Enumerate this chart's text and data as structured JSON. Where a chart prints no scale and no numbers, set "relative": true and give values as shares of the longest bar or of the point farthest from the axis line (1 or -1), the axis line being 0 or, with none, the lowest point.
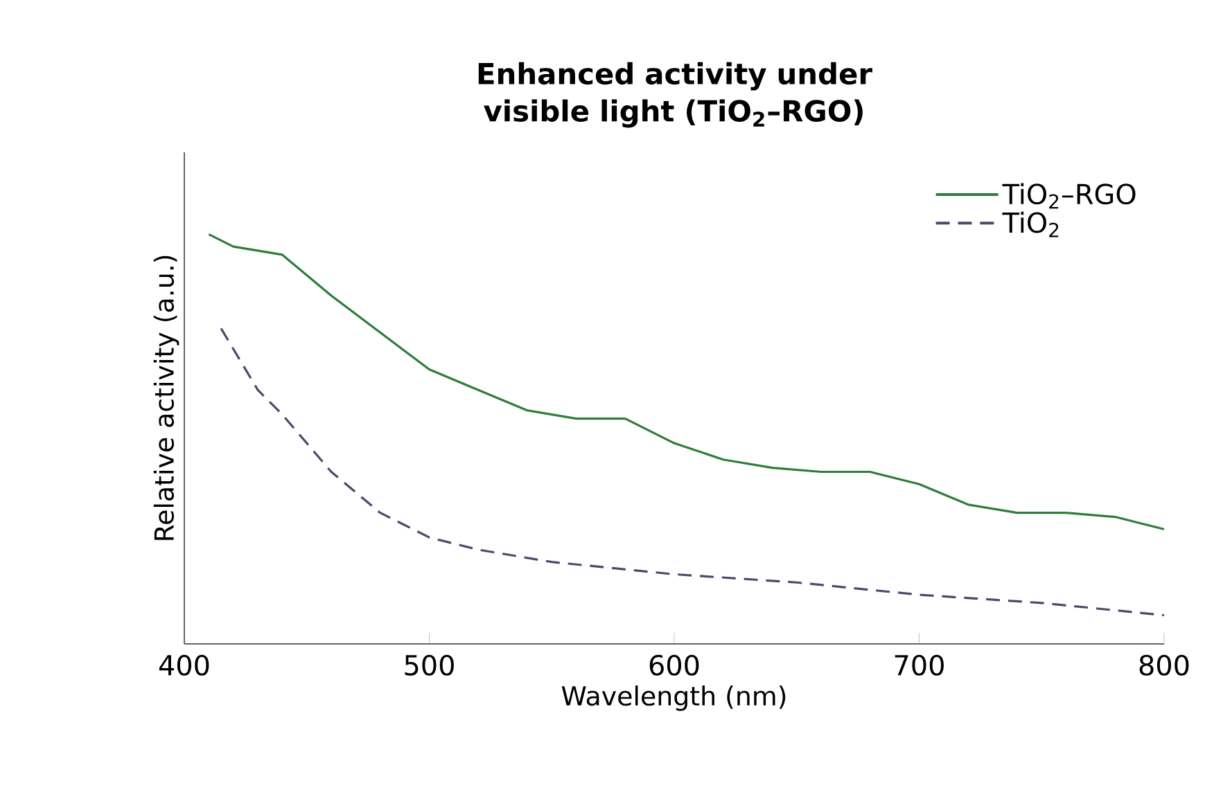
{
  "chart_data": {
    "type": "line",
    "title": "Enhanced activity under visible light (TiO$_{2}$–RGO)",
    "xlabel": "Wavelength (nm)",
    "ylabel": "Relative activity (a.u.)",
    "relative": true,
    "xlim": [
      400,
      800
    ],
    "xticks": [
      400,
      500,
      600,
      700,
      800
    ],
    "legend": "top right",
    "grid": false,
    "series": [
      {
        "name": "TiO$_{2}$–RGO",
        "color": "#2e7d3a",
        "line_style": "solid",
        "x": [
          410,
          420,
          440,
          460,
          480,
          500,
          520,
          540,
          560,
          580,
          600,
          620,
          640,
          660,
          680,
          700,
          720,
          740,
          760,
          780,
          800
        ],
        "values": [
          1.0,
          0.97,
          0.95,
          0.85,
          0.76,
          0.67,
          0.62,
          0.57,
          0.55,
          0.55,
          0.49,
          0.45,
          0.43,
          0.42,
          0.42,
          0.39,
          0.34,
          0.32,
          0.32,
          0.31,
          0.28
        ]
      },
      {
        "name": "TiO$_{2}$",
        "color": "#4a4a6a",
        "line_style": "dashed",
        "x": [
          415,
          430,
          440,
          460,
          480,
          500,
          520,
          550,
          600,
          650,
          700,
          750,
          800
        ],
        "values": [
          0.77,
          0.62,
          0.56,
          0.42,
          0.32,
          0.26,
          0.23,
          0.2,
          0.17,
          0.15,
          0.12,
          0.1,
          0.07
        ]
      }
    ]
  }
}
